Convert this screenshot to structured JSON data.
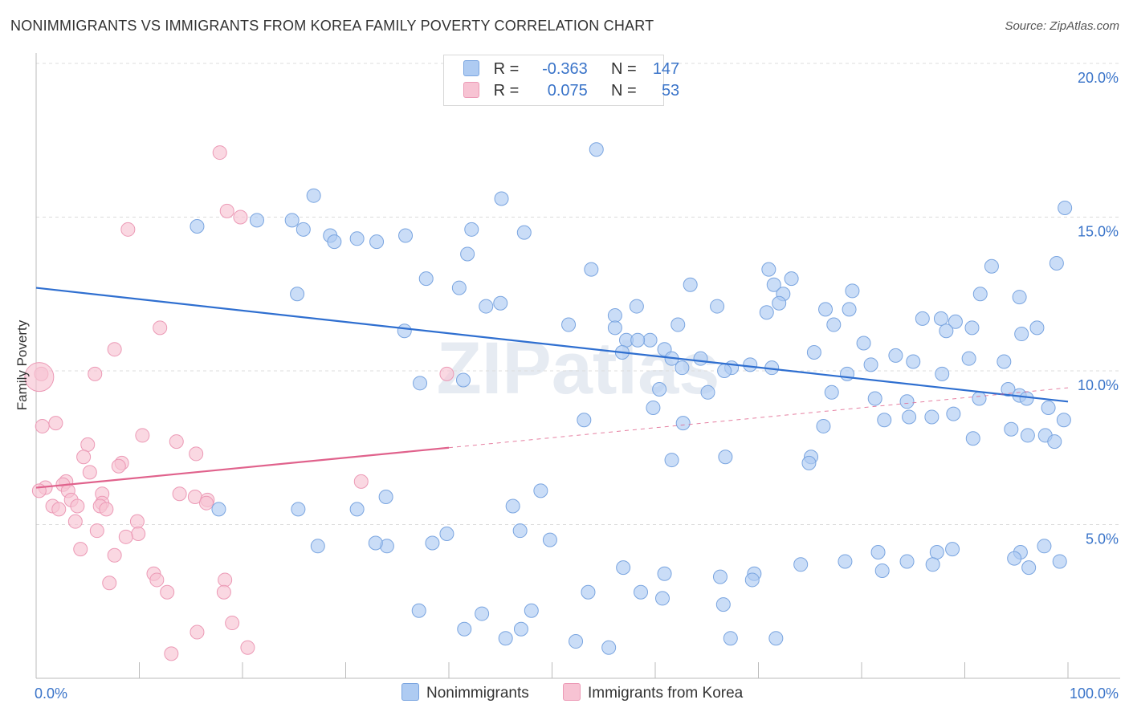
{
  "title": "NONIMMIGRANTS VS IMMIGRANTS FROM KOREA FAMILY POVERTY CORRELATION CHART",
  "source": "Source: ZipAtlas.com",
  "watermark": "ZIPatlas",
  "colors": {
    "blue_fill": "#aecbf2",
    "blue_stroke": "#7aa5e0",
    "blue_line": "#2f6fd0",
    "pink_fill": "#f7c3d3",
    "pink_stroke": "#ec9ab6",
    "pink_line": "#e0628c",
    "axis_text": "#3a74c9"
  },
  "legend": {
    "rows": [
      {
        "r_label": "R =",
        "r_value": "-0.363",
        "n_label": "N =",
        "n_value": "147"
      },
      {
        "r_label": "R =",
        "r_value": "0.075",
        "n_label": "N =",
        "n_value": "53"
      }
    ]
  },
  "chart_data": {
    "type": "scatter",
    "title": "NONIMMIGRANTS VS IMMIGRANTS FROM KOREA FAMILY POVERTY CORRELATION CHART",
    "xlabel": "",
    "ylabel": "Family Poverty",
    "xlim": [
      0,
      100
    ],
    "ylim": [
      0,
      20
    ],
    "x_tick_labels": [
      "0.0%",
      "100.0%"
    ],
    "y_ticks": [
      5,
      10,
      15,
      20
    ],
    "y_tick_labels": [
      "5.0%",
      "10.0%",
      "15.0%",
      "20.0%"
    ],
    "grid": "horizontal dashed",
    "legend_placement": "top-center",
    "series": [
      {
        "name": "Nonimmigrants",
        "r": -0.363,
        "n": 147,
        "trend": {
          "x": [
            0,
            100
          ],
          "y": [
            12.7,
            9.0
          ]
        },
        "points": [
          [
            54.3,
            17.2
          ],
          [
            26.9,
            15.7
          ],
          [
            45.1,
            15.6
          ],
          [
            99.7,
            15.3
          ],
          [
            21.4,
            14.9
          ],
          [
            24.8,
            14.9
          ],
          [
            15.6,
            14.7
          ],
          [
            25.9,
            14.6
          ],
          [
            42.2,
            14.6
          ],
          [
            47.3,
            14.5
          ],
          [
            28.5,
            14.4
          ],
          [
            35.8,
            14.4
          ],
          [
            28.9,
            14.2
          ],
          [
            31.1,
            14.3
          ],
          [
            33.0,
            14.2
          ],
          [
            41.8,
            13.8
          ],
          [
            98.9,
            13.5
          ],
          [
            53.8,
            13.3
          ],
          [
            71.0,
            13.3
          ],
          [
            92.6,
            13.4
          ],
          [
            37.8,
            13.0
          ],
          [
            73.2,
            13.0
          ],
          [
            71.5,
            12.8
          ],
          [
            63.4,
            12.8
          ],
          [
            41.0,
            12.7
          ],
          [
            79.1,
            12.6
          ],
          [
            91.5,
            12.5
          ],
          [
            72.4,
            12.5
          ],
          [
            25.3,
            12.5
          ],
          [
            95.3,
            12.4
          ],
          [
            45.0,
            12.2
          ],
          [
            43.6,
            12.1
          ],
          [
            56.1,
            11.8
          ],
          [
            58.2,
            12.1
          ],
          [
            66.0,
            12.1
          ],
          [
            72.0,
            12.2
          ],
          [
            76.5,
            12.0
          ],
          [
            78.8,
            12.0
          ],
          [
            87.7,
            11.7
          ],
          [
            70.8,
            11.9
          ],
          [
            85.9,
            11.7
          ],
          [
            89.1,
            11.6
          ],
          [
            90.7,
            11.4
          ],
          [
            97.0,
            11.4
          ],
          [
            51.6,
            11.5
          ],
          [
            62.2,
            11.5
          ],
          [
            77.3,
            11.5
          ],
          [
            56.1,
            11.4
          ],
          [
            88.2,
            11.3
          ],
          [
            95.5,
            11.2
          ],
          [
            59.5,
            11.0
          ],
          [
            35.7,
            11.3
          ],
          [
            57.2,
            11.0
          ],
          [
            58.3,
            11.0
          ],
          [
            80.2,
            10.9
          ],
          [
            60.9,
            10.7
          ],
          [
            75.4,
            10.6
          ],
          [
            83.3,
            10.5
          ],
          [
            80.9,
            10.2
          ],
          [
            61.6,
            10.4
          ],
          [
            64.4,
            10.4
          ],
          [
            56.8,
            10.6
          ],
          [
            85.0,
            10.3
          ],
          [
            90.4,
            10.4
          ],
          [
            93.8,
            10.3
          ],
          [
            69.2,
            10.2
          ],
          [
            67.4,
            10.1
          ],
          [
            62.6,
            10.1
          ],
          [
            66.7,
            10.0
          ],
          [
            71.3,
            10.1
          ],
          [
            87.8,
            9.9
          ],
          [
            78.6,
            9.9
          ],
          [
            37.2,
            9.6
          ],
          [
            41.4,
            9.7
          ],
          [
            94.2,
            9.4
          ],
          [
            65.1,
            9.3
          ],
          [
            77.1,
            9.3
          ],
          [
            60.4,
            9.4
          ],
          [
            95.3,
            9.2
          ],
          [
            96.0,
            9.1
          ],
          [
            91.4,
            9.1
          ],
          [
            81.3,
            9.1
          ],
          [
            84.4,
            9.0
          ],
          [
            59.8,
            8.8
          ],
          [
            88.9,
            8.6
          ],
          [
            84.6,
            8.5
          ],
          [
            86.8,
            8.5
          ],
          [
            98.1,
            8.8
          ],
          [
            76.3,
            8.2
          ],
          [
            53.1,
            8.4
          ],
          [
            62.7,
            8.3
          ],
          [
            94.5,
            8.1
          ],
          [
            99.6,
            8.4
          ],
          [
            82.2,
            8.4
          ],
          [
            96.1,
            7.9
          ],
          [
            97.8,
            7.9
          ],
          [
            90.8,
            7.8
          ],
          [
            98.7,
            7.7
          ],
          [
            75.1,
            7.2
          ],
          [
            61.6,
            7.1
          ],
          [
            66.8,
            7.2
          ],
          [
            74.9,
            7.0
          ],
          [
            48.9,
            6.1
          ],
          [
            46.2,
            5.6
          ],
          [
            33.9,
            5.9
          ],
          [
            31.1,
            5.5
          ],
          [
            17.7,
            5.5
          ],
          [
            25.4,
            5.5
          ],
          [
            49.8,
            4.5
          ],
          [
            46.9,
            4.8
          ],
          [
            39.8,
            4.7
          ],
          [
            38.4,
            4.4
          ],
          [
            34.0,
            4.3
          ],
          [
            32.9,
            4.4
          ],
          [
            27.3,
            4.3
          ],
          [
            81.6,
            4.1
          ],
          [
            88.8,
            4.2
          ],
          [
            87.3,
            4.1
          ],
          [
            95.4,
            4.1
          ],
          [
            97.7,
            4.3
          ],
          [
            78.4,
            3.8
          ],
          [
            84.4,
            3.8
          ],
          [
            86.9,
            3.7
          ],
          [
            94.8,
            3.9
          ],
          [
            96.2,
            3.6
          ],
          [
            99.2,
            3.8
          ],
          [
            82.0,
            3.5
          ],
          [
            74.1,
            3.7
          ],
          [
            69.6,
            3.4
          ],
          [
            60.9,
            3.4
          ],
          [
            56.9,
            3.6
          ],
          [
            66.3,
            3.3
          ],
          [
            69.4,
            3.2
          ],
          [
            58.6,
            2.8
          ],
          [
            60.7,
            2.6
          ],
          [
            66.6,
            2.4
          ],
          [
            53.5,
            2.8
          ],
          [
            48.0,
            2.2
          ],
          [
            43.2,
            2.1
          ],
          [
            37.1,
            2.2
          ],
          [
            41.5,
            1.6
          ],
          [
            47.0,
            1.6
          ],
          [
            45.5,
            1.3
          ],
          [
            52.3,
            1.2
          ],
          [
            55.5,
            1.0
          ],
          [
            67.3,
            1.3
          ],
          [
            71.7,
            1.3
          ]
        ]
      },
      {
        "name": "Immigrants from Korea",
        "r": 0.075,
        "n": 53,
        "trend": {
          "x": [
            0,
            40
          ],
          "y": [
            6.2,
            7.5
          ]
        },
        "trend_extended": {
          "x": [
            40,
            100
          ],
          "y": [
            7.5,
            9.45
          ]
        },
        "points": [
          [
            17.8,
            17.1
          ],
          [
            18.5,
            15.2
          ],
          [
            19.8,
            15.0
          ],
          [
            8.9,
            14.6
          ],
          [
            12.0,
            11.4
          ],
          [
            7.6,
            10.7
          ],
          [
            0.5,
            9.9
          ],
          [
            5.7,
            9.9
          ],
          [
            39.8,
            9.9
          ],
          [
            1.9,
            8.3
          ],
          [
            0.6,
            8.2
          ],
          [
            10.3,
            7.9
          ],
          [
            13.6,
            7.7
          ],
          [
            5.0,
            7.6
          ],
          [
            15.5,
            7.3
          ],
          [
            4.6,
            7.2
          ],
          [
            8.3,
            7.0
          ],
          [
            8.0,
            6.9
          ],
          [
            5.2,
            6.7
          ],
          [
            2.9,
            6.4
          ],
          [
            2.6,
            6.3
          ],
          [
            0.9,
            6.2
          ],
          [
            3.1,
            6.1
          ],
          [
            0.3,
            6.1
          ],
          [
            6.4,
            6.0
          ],
          [
            13.9,
            6.0
          ],
          [
            15.4,
            5.9
          ],
          [
            16.6,
            5.8
          ],
          [
            3.4,
            5.8
          ],
          [
            6.4,
            5.7
          ],
          [
            16.5,
            5.7
          ],
          [
            6.2,
            5.6
          ],
          [
            4.0,
            5.6
          ],
          [
            1.6,
            5.6
          ],
          [
            6.8,
            5.5
          ],
          [
            2.2,
            5.5
          ],
          [
            31.5,
            6.4
          ],
          [
            9.8,
            5.1
          ],
          [
            3.8,
            5.1
          ],
          [
            9.9,
            4.7
          ],
          [
            5.9,
            4.8
          ],
          [
            8.7,
            4.6
          ],
          [
            4.3,
            4.2
          ],
          [
            7.6,
            4.0
          ],
          [
            11.4,
            3.4
          ],
          [
            7.1,
            3.1
          ],
          [
            11.7,
            3.2
          ],
          [
            18.3,
            3.2
          ],
          [
            12.7,
            2.8
          ],
          [
            18.2,
            2.8
          ],
          [
            19.0,
            1.8
          ],
          [
            15.6,
            1.5
          ],
          [
            20.5,
            1.0
          ],
          [
            13.1,
            0.8
          ]
        ]
      }
    ]
  },
  "bottom_legend": [
    "Nonimmigrants",
    "Immigrants from Korea"
  ]
}
